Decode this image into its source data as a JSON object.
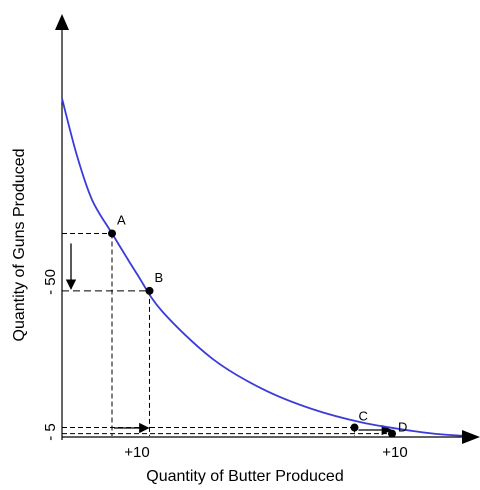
{
  "chart_data": {
    "type": "line",
    "xlabel": "Quantity of Butter Produced",
    "ylabel": "Quantity of Guns Produced",
    "x_tick_labels": [
      "+10",
      "+10"
    ],
    "y_tick_labels": [
      "- 50",
      "- 5"
    ],
    "curve_color": "#3b3bdc",
    "series": [
      {
        "values": [
          {
            "x": 0,
            "y": 100
          },
          {
            "x": 3,
            "y": 83
          },
          {
            "x": 6,
            "y": 70
          },
          {
            "x": 10,
            "y": 60
          },
          {
            "x": 15,
            "y": 48
          },
          {
            "x": 20,
            "y": 37
          },
          {
            "x": 30,
            "y": 23
          },
          {
            "x": 40,
            "y": 14
          },
          {
            "x": 50,
            "y": 8
          },
          {
            "x": 60,
            "y": 4
          },
          {
            "x": 70,
            "y": 1.5
          },
          {
            "x": 75,
            "y": 0.6
          },
          {
            "x": 80,
            "y": 0.1
          }
        ]
      }
    ],
    "points": [
      {
        "label": "A",
        "x": 10,
        "y": 60
      },
      {
        "label": "B",
        "x": 17.5,
        "y": 43
      },
      {
        "label": "C",
        "x": 58.5,
        "y": 2.5
      },
      {
        "label": "D",
        "x": 66,
        "y": 0.7
      }
    ],
    "xlim": [
      0,
      80
    ],
    "ylim": [
      0,
      125
    ],
    "grid": false
  }
}
